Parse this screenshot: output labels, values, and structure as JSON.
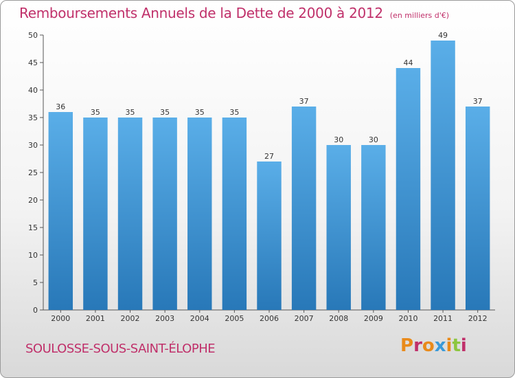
{
  "chart_data": {
    "type": "bar",
    "title": "Remboursements Annuels de la Dette de 2000 à 2012",
    "subtitle": "(en milliers d'€)",
    "categories": [
      "2000",
      "2001",
      "2002",
      "2003",
      "2004",
      "2005",
      "2006",
      "2007",
      "2008",
      "2009",
      "2010",
      "2011",
      "2012"
    ],
    "values": [
      36,
      35,
      35,
      35,
      35,
      35,
      27,
      37,
      30,
      30,
      44,
      49,
      37
    ],
    "ylim": [
      0,
      50
    ],
    "yticks": [
      0,
      5,
      10,
      15,
      20,
      25,
      30,
      35,
      40,
      45,
      50
    ],
    "xlabel": "",
    "ylabel": "",
    "grid": false,
    "bar_color_top": "#5aaee8",
    "bar_color_bottom": "#2878b8"
  },
  "footer": {
    "city": "SOULOSSE-SOUS-SAINT-ÉLOPHE",
    "brand": "Proxiti"
  },
  "colors": {
    "title": "#c0306a",
    "axis": "#333333",
    "brand_letters": [
      "#e98a1a",
      "#c0306a",
      "#e98a1a",
      "#3a9ad9",
      "#e98a1a",
      "#8cc63f",
      "#c0306a"
    ]
  }
}
